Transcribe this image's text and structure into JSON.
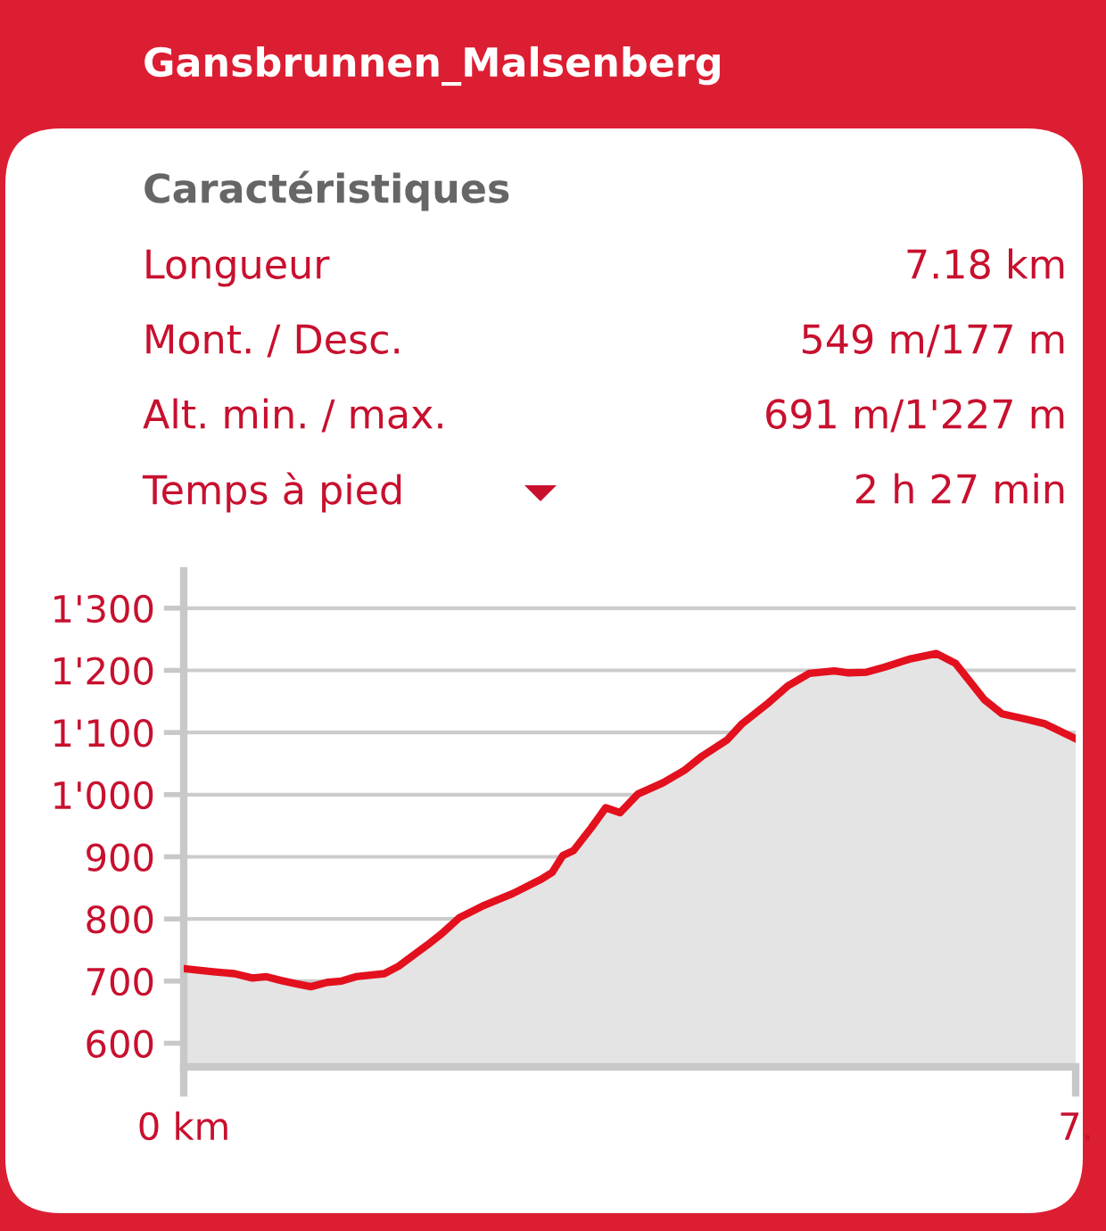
{
  "chart_data": {
    "type": "area",
    "title": "Gansbrunnen_Malsenberg",
    "subtitle": "Caractéristiques",
    "annotations": [
      "Longueur",
      "7.18 km",
      "Mont. / Desc.",
      "549 m/177 m",
      "Alt. min. / max.",
      "691 m/1'227 m",
      "Temps à pied",
      "2 h 27 min"
    ],
    "x": [
      0,
      0.236,
      0.408,
      0.552,
      0.667,
      0.782,
      0.897,
      1.023,
      1.155,
      1.27,
      1.385,
      1.615,
      1.73,
      1.96,
      2.075,
      2.219,
      2.42,
      2.65,
      2.88,
      2.966,
      3.052,
      3.138,
      3.282,
      3.397,
      3.512,
      3.656,
      3.857,
      4.029,
      4.173,
      4.374,
      4.489,
      4.691,
      4.863,
      5.036,
      5.237,
      5.352,
      5.496,
      5.639,
      5.841,
      6.059,
      6.214,
      6.444,
      6.588,
      6.789,
      6.933,
      7.18
    ],
    "series": [
      {
        "color": "#e3101e",
        "values": [
          720,
          715,
          712,
          705,
          707,
          701,
          696,
          691,
          698,
          700,
          707,
          712,
          724,
          758,
          776,
          802,
          822,
          841,
          864,
          875,
          902,
          910,
          947,
          979,
          971,
          1001,
          1019,
          1039,
          1062,
          1088,
          1113,
          1145,
          1175,
          1195,
          1199,
          1196,
          1197,
          1205,
          1218,
          1227,
          1211,
          1153,
          1130,
          1121,
          1114,
          1090
        ]
      }
    ],
    "xlim": [
      0,
      7.18
    ],
    "xticks": [
      {
        "value": 0,
        "label": "0 km"
      },
      {
        "value": 7.18,
        "label": "7."
      }
    ],
    "ylim": [
      562,
      1360
    ],
    "yticks": [
      {
        "value": 600,
        "label": "600"
      },
      {
        "value": 700,
        "label": "700"
      },
      {
        "value": 800,
        "label": "800"
      },
      {
        "value": 900,
        "label": "900"
      },
      {
        "value": 1000,
        "label": "1'000"
      },
      {
        "value": 1100,
        "label": "1'100"
      },
      {
        "value": 1200,
        "label": "1'200"
      },
      {
        "value": 1300,
        "label": "1'300"
      }
    ],
    "grid": "y",
    "legend": false
  }
}
